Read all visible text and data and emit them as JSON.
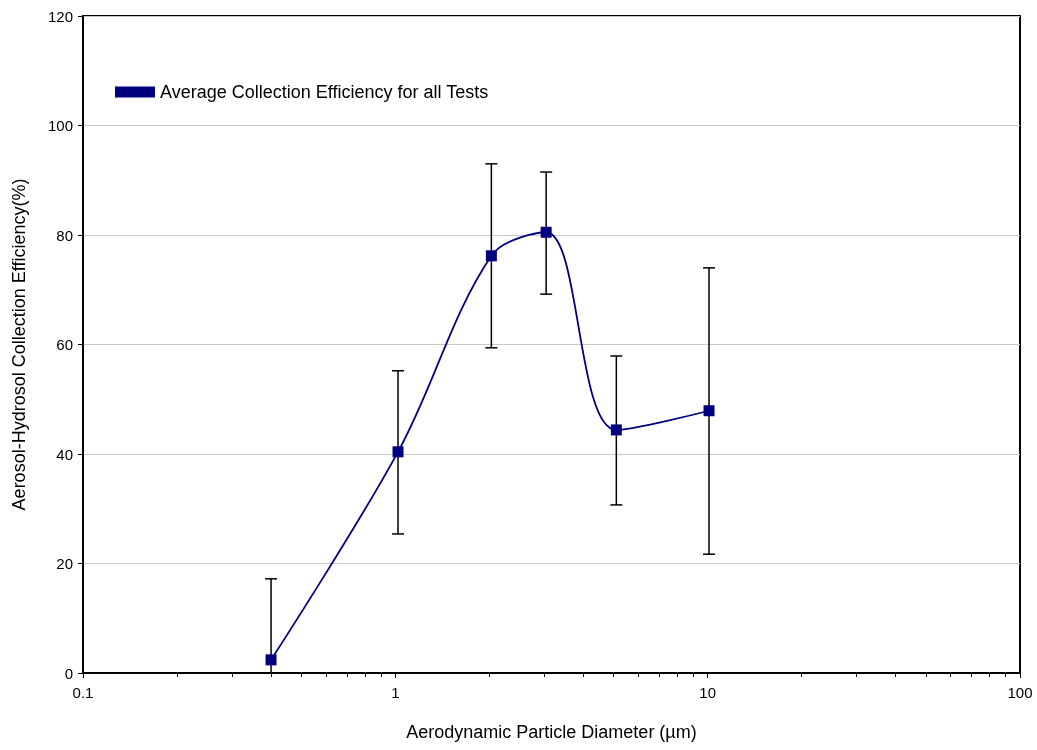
{
  "chart_data": {
    "type": "line",
    "xlabel": "Aerodynamic Particle Diameter (µm)",
    "ylabel": "Aerosol-Hydrosol Collection Efficiency(%)",
    "x": [
      0.4,
      1.02,
      2.03,
      3.04,
      5.1,
      10.1
    ],
    "series": [
      {
        "name": "Average Collection Efficiency for all Tests",
        "color": "#000080",
        "values": [
          2.4,
          40.4,
          76.2,
          80.5,
          44.4,
          47.9
        ],
        "errors": [
          [
            0,
            17.2
          ],
          [
            25.4,
            55.2
          ],
          [
            59.4,
            93.0
          ],
          [
            69.2,
            91.5
          ],
          [
            30.7,
            57.9
          ],
          [
            21.7,
            74.0
          ]
        ]
      }
    ],
    "log": "x",
    "xlim": [
      0.1,
      100
    ],
    "xticks": [
      0.1,
      1,
      10,
      100
    ],
    "ylim": [
      0,
      120
    ],
    "yticks": [
      0,
      20,
      40,
      60,
      80,
      100,
      120
    ],
    "grid": "y",
    "legend": "top left",
    "marker": "square",
    "line_style": "solid"
  }
}
